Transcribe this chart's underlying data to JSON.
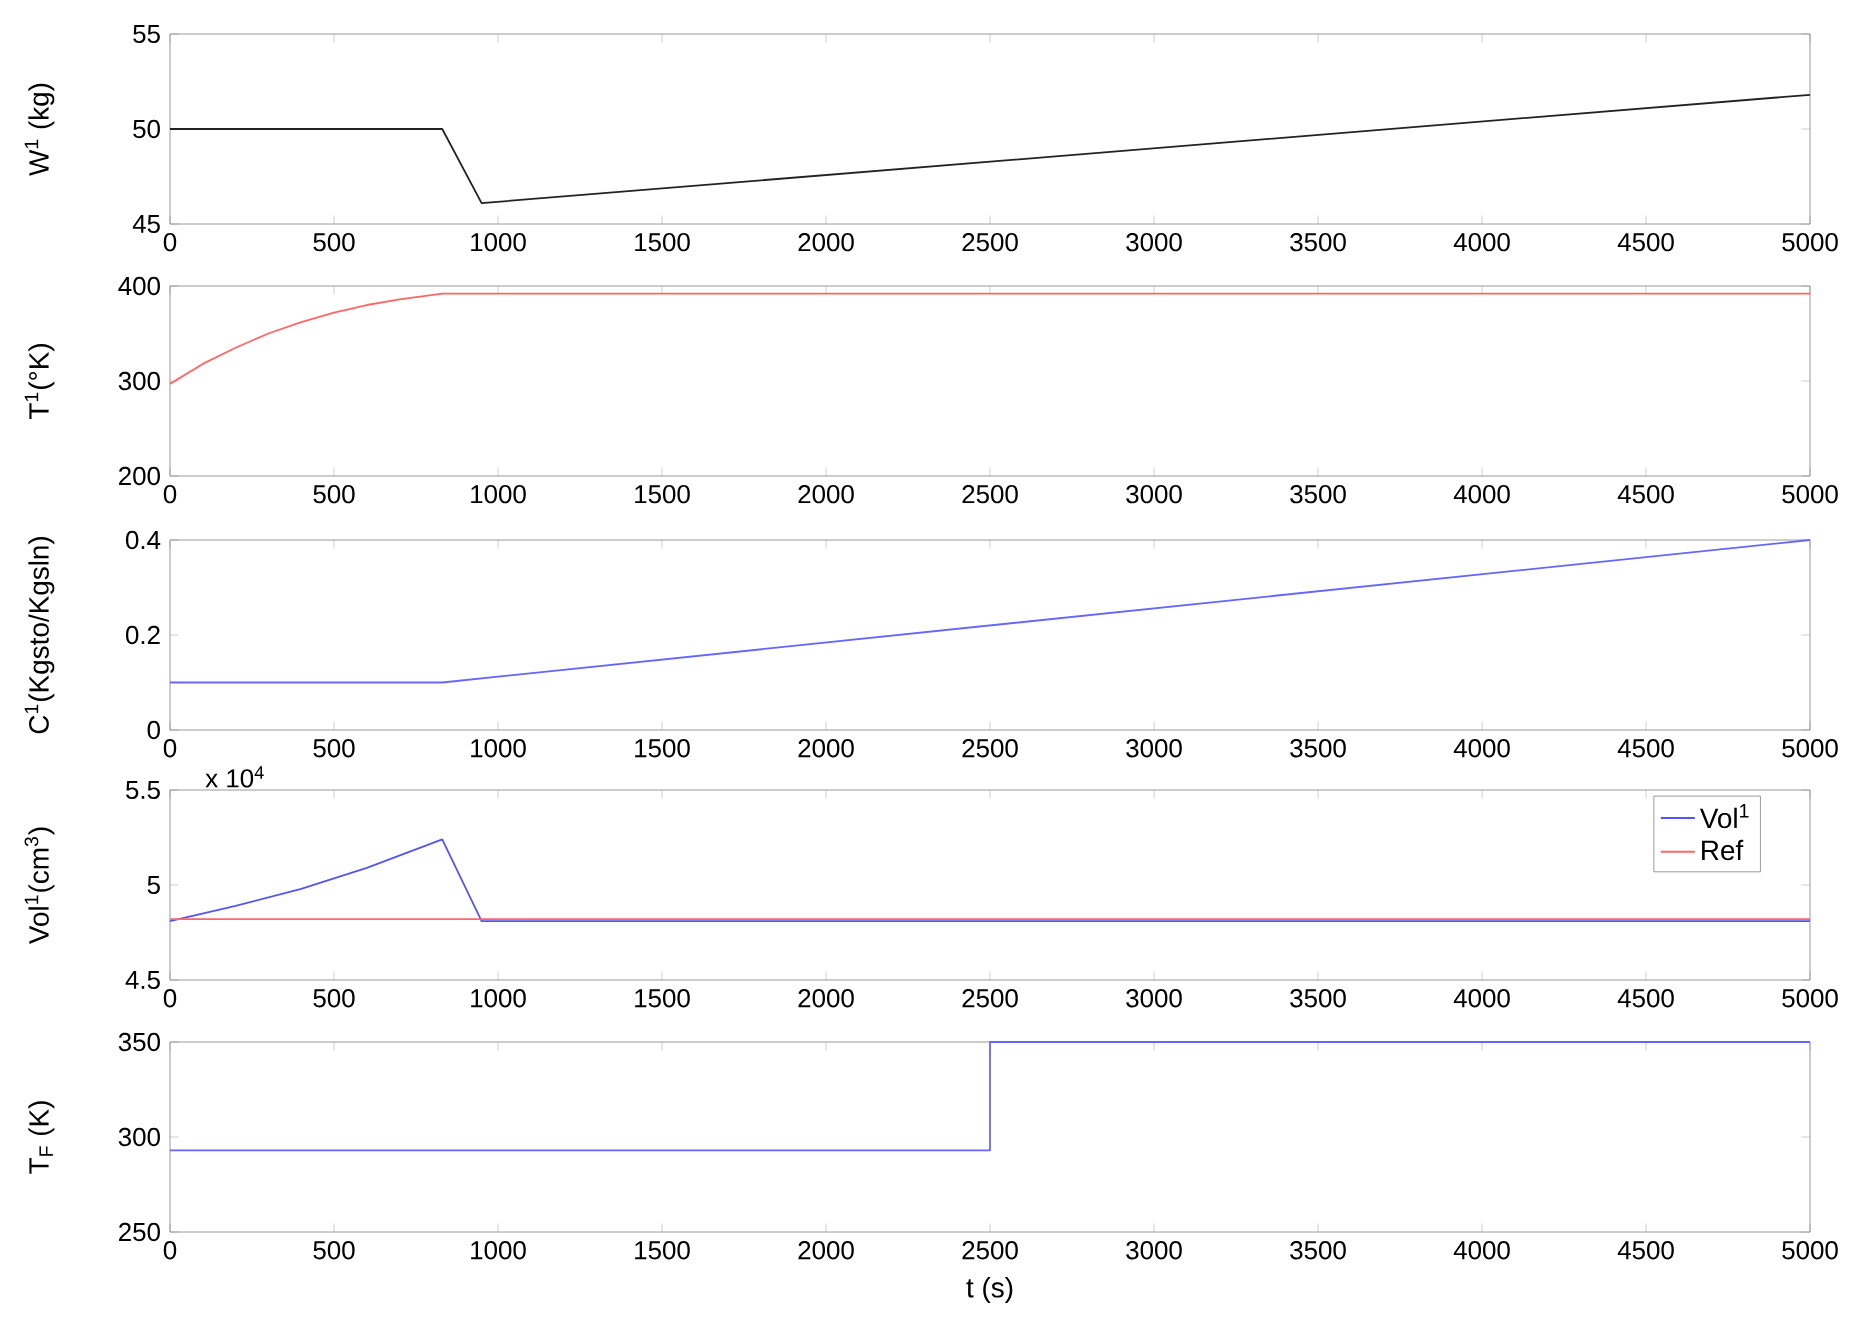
{
  "chart_data": [
    {
      "type": "line",
      "ylabel": "W$^{1}$ (kg)",
      "xlim": [
        0,
        5000
      ],
      "xticks": [
        0,
        500,
        1000,
        1500,
        2000,
        2500,
        3000,
        3500,
        4000,
        4500,
        5000
      ],
      "ylim": [
        45,
        55
      ],
      "yticks": [
        45,
        50,
        55
      ],
      "series": [
        {
          "color": "#222222",
          "x": [
            0,
            830,
            950,
            5000
          ],
          "values": [
            50,
            50,
            46.1,
            51.8
          ]
        }
      ]
    },
    {
      "type": "line",
      "ylabel": "T$^{1}$(°K)",
      "xlim": [
        0,
        5000
      ],
      "xticks": [
        0,
        500,
        1000,
        1500,
        2000,
        2500,
        3000,
        3500,
        4000,
        4500,
        5000
      ],
      "ylim": [
        200,
        400
      ],
      "yticks": [
        200,
        300,
        400
      ],
      "series": [
        {
          "color": "#ff6666",
          "x": [
            0,
            100,
            200,
            300,
            400,
            500,
            600,
            700,
            830,
            5000
          ],
          "values": [
            297,
            318,
            335,
            350,
            362,
            372,
            380,
            386,
            392,
            392
          ]
        }
      ]
    },
    {
      "type": "line",
      "ylabel": "C$^{1}$(Kgsto/Kgsln)",
      "xlim": [
        0,
        5000
      ],
      "xticks": [
        0,
        500,
        1000,
        1500,
        2000,
        2500,
        3000,
        3500,
        4000,
        4500,
        5000
      ],
      "ylim": [
        0,
        0.4
      ],
      "yticks": [
        0,
        0.2,
        0.4
      ],
      "series": [
        {
          "color": "#6666ff",
          "x": [
            0,
            830,
            5000
          ],
          "values": [
            0.1,
            0.1,
            0.4
          ]
        }
      ]
    },
    {
      "type": "line",
      "ylabel": "Vol$^{1}$(cm$^{3}$)",
      "annotations": [
        "x 10$^{4}$"
      ],
      "legend": "top right",
      "xlim": [
        0,
        5000
      ],
      "xticks": [
        0,
        500,
        1000,
        1500,
        2000,
        2500,
        3000,
        3500,
        4000,
        4500,
        5000
      ],
      "ylim": [
        4.5,
        5.5
      ],
      "yticks": [
        4.5,
        5,
        5.5
      ],
      "series": [
        {
          "name": "Vol$^{1}$",
          "color": "#5555ee",
          "x": [
            0,
            200,
            400,
            600,
            830,
            950,
            5000
          ],
          "values": [
            4.81,
            4.89,
            4.98,
            5.09,
            5.24,
            4.81,
            4.81
          ]
        },
        {
          "name": "Ref",
          "color": "#ff6666",
          "x": [
            0,
            5000
          ],
          "values": [
            4.82,
            4.82
          ]
        }
      ]
    },
    {
      "type": "line",
      "ylabel": "T$_{F}$ (K)",
      "xlabel": "t (s)",
      "xlim": [
        0,
        5000
      ],
      "xticks": [
        0,
        500,
        1000,
        1500,
        2000,
        2500,
        3000,
        3500,
        4000,
        4500,
        5000
      ],
      "ylim": [
        250,
        350
      ],
      "yticks": [
        250,
        300,
        350
      ],
      "series": [
        {
          "color": "#6666ff",
          "x": [
            0,
            2500,
            2500,
            5000
          ],
          "values": [
            293,
            293,
            350,
            350
          ]
        }
      ]
    }
  ]
}
